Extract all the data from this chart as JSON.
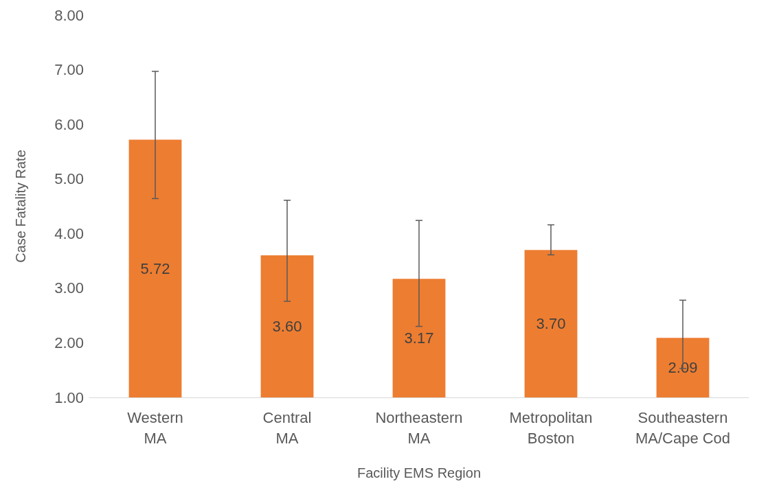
{
  "chart_data": {
    "type": "bar",
    "xlabel": "Facility EMS Region",
    "ylabel": "Case Fatality Rate",
    "categories": [
      "Western MA",
      "Central MA",
      "Northeastern MA",
      "Metropolitan Boston",
      "Southeastern MA/Cape Cod"
    ],
    "values": [
      5.72,
      3.6,
      3.17,
      3.7,
      2.09
    ],
    "color": "#ed7d31",
    "errors": [
      [
        4.64,
        6.97
      ],
      [
        2.76,
        4.61
      ],
      [
        2.3,
        4.24
      ],
      [
        3.61,
        4.16
      ],
      [
        1.53,
        2.78
      ]
    ],
    "value_labels": [
      "5.72",
      "3.60",
      "3.17",
      "3.70",
      "2.09"
    ],
    "grid": false,
    "ylim": [
      1,
      8
    ],
    "yticks": [
      {
        "value": 1,
        "label": "1.00"
      },
      {
        "value": 2,
        "label": "2.00"
      },
      {
        "value": 3,
        "label": "3.00"
      },
      {
        "value": 4,
        "label": "4.00"
      },
      {
        "value": 5,
        "label": "5.00"
      },
      {
        "value": 6,
        "label": "6.00"
      },
      {
        "value": 7,
        "label": "7.00"
      },
      {
        "value": 8,
        "label": "8.00"
      }
    ]
  }
}
